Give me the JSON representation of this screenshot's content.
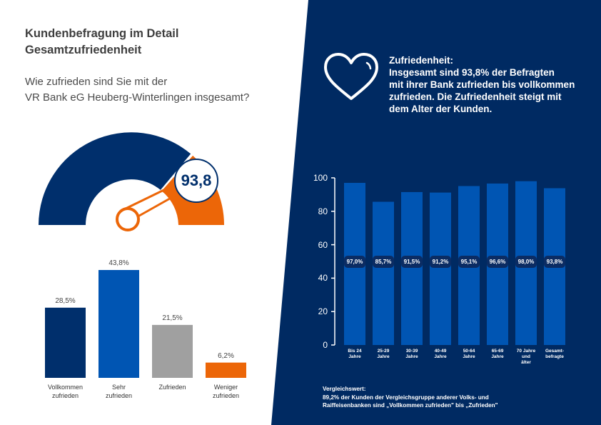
{
  "header": {
    "title_line1": "Kundenbefragung im Detail",
    "title_line2": "Gesamtzufriedenheit",
    "question_line1": "Wie zufrieden sind Sie mit der",
    "question_line2": "VR Bank eG Heuberg-Winterlingen insgesamt?"
  },
  "gauge": {
    "value_label": "93,8",
    "value": 93.8
  },
  "colors": {
    "navy": "#002f6c",
    "blue": "#0055b3",
    "orange": "#ec6608",
    "grey": "#a0a0a0",
    "panel": "#002a62"
  },
  "info": {
    "heading": "Zufriedenheit:",
    "line1": "Insgesamt sind 93,8% der Befragten",
    "line2": "mit ihrer Bank zufrieden bis vollkommen",
    "line3": "zufrieden. Die Zufriedenheit steigt mit",
    "line4": "dem Alter der Kunden.",
    "icon": "heart-icon"
  },
  "comparison": {
    "title": "Vergleichswert:",
    "line1": "89,2% der Kunden der Vergleichsgruppe anderer Volks- und",
    "line2": "Raiffeisenbanken  sind  „Vollkommen zufrieden\" bis „Zufrieden\""
  },
  "chart_data": [
    {
      "type": "bar",
      "categories": [
        "Vollkommen zufrieden",
        "Sehr zufrieden",
        "Zufrieden",
        "Weniger zufrieden"
      ],
      "category_lines": [
        [
          "Vollkommen",
          "zufrieden"
        ],
        [
          "Sehr",
          "zufrieden"
        ],
        [
          "Zufrieden",
          ""
        ],
        [
          "Weniger",
          "zufrieden"
        ]
      ],
      "values": [
        28.5,
        43.8,
        21.5,
        6.2
      ],
      "value_labels": [
        "28,5%",
        "43,8%",
        "21,5%",
        "6,2%"
      ],
      "colors": [
        "#002f6c",
        "#0055b3",
        "#a0a0a0",
        "#ec6608"
      ],
      "ylim": [
        0,
        45
      ]
    },
    {
      "type": "bar",
      "categories": [
        "Bis 24 Jahre",
        "25-29 Jahre",
        "30-39 Jahre",
        "40-49 Jahre",
        "50-64 Jahre",
        "65-69 Jahre",
        "70 Jahre und älter",
        "Gesamt-befragte"
      ],
      "category_lines": [
        [
          "Bis 24",
          "Jahre",
          ""
        ],
        [
          "25-29",
          "Jahre",
          ""
        ],
        [
          "30-39",
          "Jahre",
          ""
        ],
        [
          "40-49",
          "Jahre",
          ""
        ],
        [
          "50-64",
          "Jahre",
          ""
        ],
        [
          "65-69",
          "Jahre",
          ""
        ],
        [
          "70 Jahre",
          "und",
          "älter"
        ],
        [
          "Gesamt-",
          "befragte",
          ""
        ]
      ],
      "values": [
        97.0,
        85.7,
        91.5,
        91.2,
        95.1,
        96.6,
        98.0,
        93.8
      ],
      "value_labels": [
        "97,0%",
        "85,7%",
        "91,5%",
        "91,2%",
        "95,1%",
        "96,6%",
        "98,0%",
        "93,8%"
      ],
      "yticks": [
        "0",
        "20",
        "40",
        "60",
        "80",
        "100"
      ],
      "ylim": [
        0,
        100
      ],
      "grid": false
    }
  ]
}
